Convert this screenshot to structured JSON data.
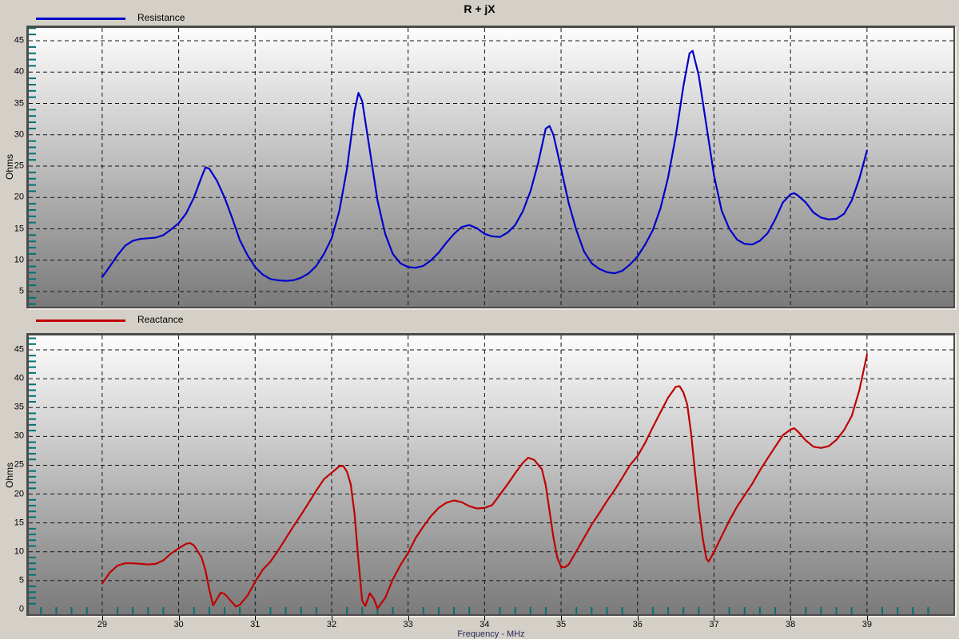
{
  "title": "R + jX",
  "colors": {
    "window_bg": "#d4d0c8",
    "plot_gradient_top": "#fdfdfd",
    "plot_gradient_bottom": "#7a7a7a",
    "grid_line": "#141414",
    "minor_tick": "#007272",
    "resistance_line": "#0000cd",
    "reactance_line": "#c00000",
    "tick_label": "#000000",
    "axis_title": "#26265a"
  },
  "xaxis": {
    "label": "Frequency - MHz",
    "ticks": [
      29,
      30,
      31,
      32,
      33,
      34,
      35,
      36,
      37,
      38,
      39
    ],
    "minor_step": 0.2
  },
  "chart_data": [
    {
      "type": "line",
      "title": "R + jX",
      "xlabel": "Frequency - MHz",
      "ylabel": "Ohms",
      "legend_position": "top-left",
      "grid": "dashed",
      "xlim": [
        28.04,
        40.13
      ],
      "ylim": [
        2.58,
        47.04
      ],
      "xticks": [
        29,
        30,
        31,
        32,
        33,
        34,
        35,
        36,
        37,
        38,
        39
      ],
      "yticks": [
        5,
        10,
        15,
        20,
        25,
        30,
        35,
        40,
        45
      ],
      "x_minor_ticks": false,
      "series": [
        {
          "name": "Resistance",
          "color": "#0000cd",
          "points": [
            [
              29.0,
              7.3
            ],
            [
              29.1,
              9.0
            ],
            [
              29.2,
              10.8
            ],
            [
              29.3,
              12.3
            ],
            [
              29.4,
              13.1
            ],
            [
              29.5,
              13.4
            ],
            [
              29.6,
              13.5
            ],
            [
              29.7,
              13.6
            ],
            [
              29.8,
              14.0
            ],
            [
              29.9,
              14.9
            ],
            [
              30.0,
              15.9
            ],
            [
              30.1,
              17.5
            ],
            [
              30.2,
              20.0
            ],
            [
              30.3,
              23.3
            ],
            [
              30.35,
              24.8
            ],
            [
              30.4,
              24.6
            ],
            [
              30.5,
              22.7
            ],
            [
              30.6,
              20.0
            ],
            [
              30.7,
              16.7
            ],
            [
              30.8,
              13.2
            ],
            [
              30.9,
              10.8
            ],
            [
              31.0,
              8.9
            ],
            [
              31.1,
              7.7
            ],
            [
              31.2,
              7.0
            ],
            [
              31.3,
              6.8
            ],
            [
              31.4,
              6.7
            ],
            [
              31.5,
              6.8
            ],
            [
              31.6,
              7.2
            ],
            [
              31.7,
              7.9
            ],
            [
              31.8,
              9.1
            ],
            [
              31.9,
              11.0
            ],
            [
              32.0,
              13.5
            ],
            [
              32.1,
              17.8
            ],
            [
              32.2,
              24.5
            ],
            [
              32.3,
              33.8
            ],
            [
              32.35,
              36.7
            ],
            [
              32.4,
              35.4
            ],
            [
              32.5,
              27.5
            ],
            [
              32.6,
              19.5
            ],
            [
              32.7,
              14.2
            ],
            [
              32.8,
              11.0
            ],
            [
              32.9,
              9.5
            ],
            [
              33.0,
              8.9
            ],
            [
              33.1,
              8.8
            ],
            [
              33.2,
              9.1
            ],
            [
              33.3,
              10.0
            ],
            [
              33.4,
              11.2
            ],
            [
              33.5,
              12.8
            ],
            [
              33.6,
              14.2
            ],
            [
              33.7,
              15.3
            ],
            [
              33.8,
              15.6
            ],
            [
              33.9,
              15.1
            ],
            [
              34.0,
              14.2
            ],
            [
              34.1,
              13.8
            ],
            [
              34.2,
              13.7
            ],
            [
              34.3,
              14.4
            ],
            [
              34.4,
              15.6
            ],
            [
              34.5,
              17.8
            ],
            [
              34.6,
              21.0
            ],
            [
              34.7,
              25.5
            ],
            [
              34.8,
              31.0
            ],
            [
              34.85,
              31.4
            ],
            [
              34.9,
              30.0
            ],
            [
              35.0,
              24.6
            ],
            [
              35.1,
              19.1
            ],
            [
              35.2,
              14.8
            ],
            [
              35.3,
              11.4
            ],
            [
              35.4,
              9.5
            ],
            [
              35.5,
              8.6
            ],
            [
              35.6,
              8.1
            ],
            [
              35.7,
              7.9
            ],
            [
              35.8,
              8.3
            ],
            [
              35.9,
              9.3
            ],
            [
              36.0,
              10.6
            ],
            [
              36.1,
              12.5
            ],
            [
              36.2,
              14.8
            ],
            [
              36.3,
              18.3
            ],
            [
              36.4,
              23.2
            ],
            [
              36.5,
              29.8
            ],
            [
              36.6,
              37.8
            ],
            [
              36.68,
              43.0
            ],
            [
              36.72,
              43.4
            ],
            [
              36.8,
              39.5
            ],
            [
              36.9,
              31.5
            ],
            [
              37.0,
              23.5
            ],
            [
              37.1,
              17.9
            ],
            [
              37.2,
              15.0
            ],
            [
              37.3,
              13.3
            ],
            [
              37.4,
              12.6
            ],
            [
              37.5,
              12.5
            ],
            [
              37.6,
              13.1
            ],
            [
              37.7,
              14.3
            ],
            [
              37.8,
              16.5
            ],
            [
              37.9,
              19.2
            ],
            [
              38.0,
              20.5
            ],
            [
              38.05,
              20.7
            ],
            [
              38.1,
              20.3
            ],
            [
              38.2,
              19.2
            ],
            [
              38.3,
              17.6
            ],
            [
              38.4,
              16.8
            ],
            [
              38.5,
              16.5
            ],
            [
              38.6,
              16.6
            ],
            [
              38.7,
              17.4
            ],
            [
              38.8,
              19.5
            ],
            [
              38.9,
              23.0
            ],
            [
              39.0,
              27.5
            ]
          ]
        }
      ]
    },
    {
      "type": "line",
      "title": "",
      "xlabel": "Frequency - MHz",
      "ylabel": "Ohms",
      "legend_position": "top-left",
      "grid": "dashed",
      "xlim": [
        28.04,
        40.13
      ],
      "ylim": [
        -0.83,
        47.49
      ],
      "xticks": [
        29,
        30,
        31,
        32,
        33,
        34,
        35,
        36,
        37,
        38,
        39
      ],
      "yticks": [
        0,
        5,
        10,
        15,
        20,
        25,
        30,
        35,
        40,
        45
      ],
      "x_minor_ticks": true,
      "series": [
        {
          "name": "Reactance",
          "color": "#c00000",
          "points": [
            [
              29.0,
              4.5
            ],
            [
              29.1,
              6.4
            ],
            [
              29.2,
              7.6
            ],
            [
              29.3,
              8.0
            ],
            [
              29.4,
              8.0
            ],
            [
              29.5,
              7.9
            ],
            [
              29.6,
              7.8
            ],
            [
              29.7,
              7.9
            ],
            [
              29.8,
              8.5
            ],
            [
              29.9,
              9.7
            ],
            [
              30.0,
              10.6
            ],
            [
              30.1,
              11.4
            ],
            [
              30.15,
              11.5
            ],
            [
              30.2,
              11.1
            ],
            [
              30.3,
              9.0
            ],
            [
              30.35,
              6.8
            ],
            [
              30.4,
              3.5
            ],
            [
              30.45,
              0.7
            ],
            [
              30.5,
              1.8
            ],
            [
              30.55,
              2.9
            ],
            [
              30.6,
              2.7
            ],
            [
              30.7,
              1.2
            ],
            [
              30.75,
              0.5
            ],
            [
              30.8,
              0.8
            ],
            [
              30.9,
              2.4
            ],
            [
              31.0,
              4.8
            ],
            [
              31.1,
              6.9
            ],
            [
              31.2,
              8.3
            ],
            [
              31.3,
              10.2
            ],
            [
              31.4,
              12.3
            ],
            [
              31.5,
              14.4
            ],
            [
              31.6,
              16.4
            ],
            [
              31.7,
              18.5
            ],
            [
              31.8,
              20.6
            ],
            [
              31.9,
              22.6
            ],
            [
              32.0,
              23.7
            ],
            [
              32.1,
              24.8
            ],
            [
              32.15,
              24.9
            ],
            [
              32.2,
              23.9
            ],
            [
              32.25,
              21.7
            ],
            [
              32.3,
              16.5
            ],
            [
              32.35,
              8.5
            ],
            [
              32.4,
              1.5
            ],
            [
              32.44,
              0.6
            ],
            [
              32.5,
              2.8
            ],
            [
              32.55,
              1.9
            ],
            [
              32.6,
              0.2
            ],
            [
              32.7,
              2.0
            ],
            [
              32.8,
              5.2
            ],
            [
              32.9,
              7.7
            ],
            [
              33.0,
              9.8
            ],
            [
              33.1,
              12.4
            ],
            [
              33.2,
              14.4
            ],
            [
              33.3,
              16.2
            ],
            [
              33.4,
              17.6
            ],
            [
              33.5,
              18.5
            ],
            [
              33.6,
              18.9
            ],
            [
              33.7,
              18.6
            ],
            [
              33.8,
              17.9
            ],
            [
              33.9,
              17.5
            ],
            [
              34.0,
              17.6
            ],
            [
              34.1,
              18.1
            ],
            [
              34.2,
              19.9
            ],
            [
              34.3,
              21.7
            ],
            [
              34.4,
              23.6
            ],
            [
              34.5,
              25.4
            ],
            [
              34.57,
              26.3
            ],
            [
              34.65,
              25.9
            ],
            [
              34.75,
              24.3
            ],
            [
              34.8,
              21.5
            ],
            [
              34.85,
              17.0
            ],
            [
              34.9,
              12.5
            ],
            [
              34.95,
              9.0
            ],
            [
              35.0,
              7.4
            ],
            [
              35.05,
              7.3
            ],
            [
              35.1,
              7.8
            ],
            [
              35.2,
              10.1
            ],
            [
              35.3,
              12.4
            ],
            [
              35.4,
              14.7
            ],
            [
              35.5,
              16.7
            ],
            [
              35.6,
              18.8
            ],
            [
              35.7,
              20.7
            ],
            [
              35.8,
              22.8
            ],
            [
              35.9,
              25.0
            ],
            [
              36.0,
              26.6
            ],
            [
              36.1,
              28.9
            ],
            [
              36.2,
              31.6
            ],
            [
              36.3,
              34.2
            ],
            [
              36.4,
              36.7
            ],
            [
              36.5,
              38.6
            ],
            [
              36.55,
              38.7
            ],
            [
              36.6,
              37.6
            ],
            [
              36.65,
              35.5
            ],
            [
              36.7,
              30.5
            ],
            [
              36.75,
              24.0
            ],
            [
              36.8,
              17.8
            ],
            [
              36.85,
              12.6
            ],
            [
              36.9,
              8.8
            ],
            [
              36.93,
              8.3
            ],
            [
              37.0,
              10.0
            ],
            [
              37.1,
              12.7
            ],
            [
              37.2,
              15.4
            ],
            [
              37.3,
              17.8
            ],
            [
              37.4,
              19.8
            ],
            [
              37.5,
              21.8
            ],
            [
              37.6,
              24.1
            ],
            [
              37.7,
              26.2
            ],
            [
              37.8,
              28.2
            ],
            [
              37.9,
              30.2
            ],
            [
              38.0,
              31.2
            ],
            [
              38.05,
              31.4
            ],
            [
              38.1,
              30.8
            ],
            [
              38.2,
              29.3
            ],
            [
              38.3,
              28.2
            ],
            [
              38.4,
              28.0
            ],
            [
              38.5,
              28.3
            ],
            [
              38.6,
              29.4
            ],
            [
              38.7,
              31.1
            ],
            [
              38.8,
              33.5
            ],
            [
              38.9,
              38.0
            ],
            [
              39.0,
              44.2
            ]
          ]
        }
      ]
    }
  ]
}
